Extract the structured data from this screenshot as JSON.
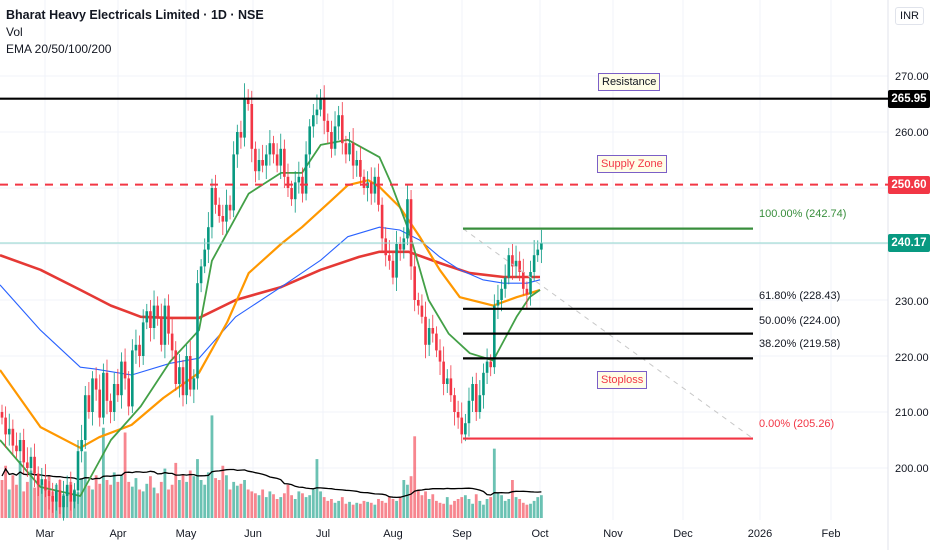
{
  "header": {
    "title": "Bharat Heavy Electricals Limited · 1D · NSE",
    "indicator_vol": "Vol",
    "indicator_ema": "EMA 20/50/100/200",
    "currency": "INR"
  },
  "annotations": {
    "resistance_label": "Resistance",
    "supply_label": "Supply Zone",
    "stoploss_label": "Stoploss"
  },
  "colors": {
    "up": "#089981",
    "down": "#f23645",
    "ema20": "#43a047",
    "ema50": "#ff9800",
    "ema100": "#2962ff",
    "ema200": "#e53935",
    "vol_ma": "#000000",
    "tag_border": "#7b5fc7"
  },
  "chart_data": {
    "type": "candlestick",
    "symbol": "Bharat Heavy Electricals Limited",
    "interval": "1D",
    "exchange": "NSE",
    "y_axis": {
      "range": [
        194,
        273
      ],
      "ticks": [
        "270.00",
        "260.00",
        "230.00",
        "220.00",
        "210.00",
        "200.00"
      ],
      "tick_values": [
        270,
        260,
        230,
        220,
        210,
        200
      ],
      "side": "right"
    },
    "x_ticks": [
      "Mar",
      "Apr",
      "May",
      "Jun",
      "Jul",
      "Aug",
      "Sep",
      "Oct",
      "Nov",
      "Dec",
      "2026",
      "Feb"
    ],
    "grid": true,
    "closes_by_month": {
      "2025-02": [
        209,
        206,
        207,
        204,
        203,
        205,
        201,
        200,
        202,
        199,
        197,
        198
      ],
      "2025-03": [
        196,
        195,
        194,
        196,
        193,
        195,
        197,
        194,
        196,
        203,
        205,
        213,
        210,
        216,
        214,
        209,
        217,
        212,
        210,
        215,
        213
      ],
      "2025-04": [
        219,
        216,
        211,
        221,
        222,
        220,
        226,
        228,
        225,
        229,
        227,
        222,
        229,
        224,
        221,
        215,
        218,
        213
      ],
      "2025-05": [
        220,
        214,
        216,
        233,
        236,
        239,
        243,
        250,
        247,
        245,
        244,
        247,
        246,
        256,
        260,
        259,
        266,
        265,
        257
      ],
      "2025-06": [
        253,
        255,
        254,
        256,
        258,
        256,
        254,
        257,
        252,
        250,
        248,
        251,
        252,
        249,
        256,
        261,
        263,
        264,
        266
      ],
      "2025-07": [
        262,
        260,
        257,
        261,
        263,
        258,
        256,
        258,
        254,
        255,
        252,
        250,
        251,
        249,
        252,
        247,
        241,
        238,
        237
      ],
      "2025-08": [
        234,
        240,
        239,
        241,
        248,
        236,
        230,
        229,
        227,
        222,
        225,
        224,
        221,
        219,
        215,
        216,
        213,
        210,
        209
      ],
      "2025-09": [
        206,
        208,
        212,
        215,
        210,
        213,
        217,
        219,
        218,
        229,
        230,
        232,
        234,
        238,
        236,
        237,
        235,
        232,
        231,
        235,
        238,
        239
      ],
      "2025-10": [
        240.17
      ]
    },
    "volume_by_month": {
      "2025-02": [
        40,
        55,
        30,
        45,
        35,
        60,
        28,
        38,
        50,
        32,
        42,
        36
      ],
      "2025-03": [
        30,
        45,
        28,
        35,
        40,
        25,
        33,
        38,
        30,
        27,
        42,
        70,
        34,
        30,
        45,
        36,
        95,
        40,
        35,
        48,
        38
      ],
      "2025-04": [
        45,
        90,
        38,
        33,
        42,
        30,
        28,
        36,
        44,
        32,
        26,
        38,
        52,
        30,
        35,
        58,
        40,
        46
      ],
      "2025-05": [
        38,
        50,
        44,
        62,
        40,
        35,
        48,
        108,
        42,
        40,
        55,
        45,
        30,
        38,
        34,
        36,
        40,
        30,
        28
      ],
      "2025-06": [
        26,
        24,
        30,
        22,
        28,
        25,
        20,
        22,
        26,
        35,
        24,
        20,
        28,
        26,
        22,
        24,
        30,
        62,
        28
      ],
      "2025-07": [
        22,
        18,
        20,
        16,
        18,
        22,
        15,
        17,
        14,
        16,
        15,
        18,
        17,
        16,
        14,
        20,
        18,
        16,
        22
      ],
      "2025-08": [
        20,
        18,
        22,
        40,
        35,
        44,
        86,
        30,
        24,
        28,
        20,
        25,
        18,
        16,
        15,
        22,
        14,
        18,
        20
      ],
      "2025-09": [
        22,
        24,
        20,
        15,
        25,
        18,
        14,
        20,
        22,
        73,
        26,
        24,
        18,
        20,
        40,
        22,
        20,
        16,
        14,
        15,
        18,
        22
      ],
      "2025-10": [
        24
      ]
    },
    "ema": [
      {
        "name": "EMA 20",
        "points": [
          [
            "2025-02-09",
            205
          ],
          [
            "2025-02-27",
            196.6
          ],
          [
            "2025-03-16",
            195
          ],
          [
            "2025-03-29",
            205
          ],
          [
            "2025-04-11",
            211
          ],
          [
            "2025-04-24",
            219
          ],
          [
            "2025-05-07",
            224.6
          ],
          [
            "2025-05-13",
            237
          ],
          [
            "2025-05-30",
            249
          ],
          [
            "2025-06-13",
            252.7
          ],
          [
            "2025-06-22",
            252.7
          ],
          [
            "2025-06-30",
            257.7
          ],
          [
            "2025-07-12",
            258.6
          ],
          [
            "2025-07-26",
            255.5
          ],
          [
            "2025-07-31",
            251
          ],
          [
            "2025-08-08",
            242.5
          ],
          [
            "2025-08-17",
            230
          ],
          [
            "2025-08-26",
            224
          ],
          [
            "2025-09-04",
            220.5
          ],
          [
            "2025-09-13",
            219.2
          ],
          [
            "2025-09-22",
            227
          ],
          [
            "2025-09-27",
            230.5
          ],
          [
            "2025-10-01",
            231.8
          ]
        ]
      },
      {
        "name": "EMA 50",
        "points": [
          [
            "2025-02-09",
            217.5
          ],
          [
            "2025-02-27",
            207.3
          ],
          [
            "2025-03-16",
            203.6
          ],
          [
            "2025-03-24",
            205.5
          ],
          [
            "2025-04-07",
            207.7
          ],
          [
            "2025-04-21",
            212.5
          ],
          [
            "2025-05-07",
            217
          ],
          [
            "2025-05-20",
            226
          ],
          [
            "2025-05-30",
            234.8
          ],
          [
            "2025-06-13",
            240
          ],
          [
            "2025-06-22",
            243
          ],
          [
            "2025-07-05",
            247.9
          ],
          [
            "2025-07-12",
            250.5
          ],
          [
            "2025-07-21",
            251.4
          ],
          [
            "2025-07-26",
            250.2
          ],
          [
            "2025-08-04",
            246.6
          ],
          [
            "2025-08-13",
            241.3
          ],
          [
            "2025-08-22",
            235.4
          ],
          [
            "2025-08-31",
            230.5
          ],
          [
            "2025-09-13",
            229
          ],
          [
            "2025-09-22",
            230.5
          ],
          [
            "2025-09-27",
            231.2
          ],
          [
            "2025-10-01",
            231.8
          ]
        ]
      },
      {
        "name": "EMA 100",
        "points": [
          [
            "2025-02-09",
            232.7
          ],
          [
            "2025-02-27",
            224.6
          ],
          [
            "2025-03-16",
            218
          ],
          [
            "2025-03-22",
            217.7
          ],
          [
            "2025-04-07",
            216.6
          ],
          [
            "2025-04-24",
            218.7
          ],
          [
            "2025-05-07",
            219.6
          ],
          [
            "2025-05-24",
            227
          ],
          [
            "2025-06-13",
            232.3
          ],
          [
            "2025-06-30",
            237.1
          ],
          [
            "2025-07-12",
            241.3
          ],
          [
            "2025-07-26",
            243
          ],
          [
            "2025-08-04",
            242.5
          ],
          [
            "2025-08-13",
            240.7
          ],
          [
            "2025-08-22",
            237.7
          ],
          [
            "2025-08-31",
            235.4
          ],
          [
            "2025-09-09",
            233.6
          ],
          [
            "2025-09-17",
            233
          ],
          [
            "2025-09-26",
            233
          ],
          [
            "2025-10-01",
            233.6
          ]
        ]
      },
      {
        "name": "EMA 200",
        "points": [
          [
            "2025-02-09",
            238
          ],
          [
            "2025-02-27",
            235.4
          ],
          [
            "2025-03-16",
            231.8
          ],
          [
            "2025-03-29",
            229
          ],
          [
            "2025-04-11",
            227
          ],
          [
            "2025-04-24",
            226.8
          ],
          [
            "2025-05-07",
            226.8
          ],
          [
            "2025-05-24",
            230
          ],
          [
            "2025-06-13",
            232.3
          ],
          [
            "2025-06-30",
            235.4
          ],
          [
            "2025-07-17",
            237.7
          ],
          [
            "2025-07-26",
            238.6
          ],
          [
            "2025-08-08",
            238.6
          ],
          [
            "2025-08-22",
            236.6
          ],
          [
            "2025-09-04",
            234.8
          ],
          [
            "2025-09-17",
            234.1
          ],
          [
            "2025-10-01",
            234.1
          ]
        ]
      }
    ],
    "levels": {
      "resistance": {
        "value": 265.95,
        "label": "265.95"
      },
      "supply_zone": {
        "value": 250.6,
        "label": "250.60"
      },
      "last_price": {
        "value": 240.17,
        "label": "240.17"
      }
    },
    "fibonacci": [
      {
        "value": 242.74,
        "label": "100.00% (242.74)",
        "color": "#388e3c"
      },
      {
        "value": 228.43,
        "label": "61.80% (228.43)",
        "color": "#000000"
      },
      {
        "value": 224.0,
        "label": "50.00% (224.00)",
        "color": "#000000"
      },
      {
        "value": 219.58,
        "label": "38.20% (219.58)",
        "color": "#000000"
      },
      {
        "value": 205.26,
        "label": "0.00% (205.26)",
        "color": "#f23645"
      }
    ]
  }
}
